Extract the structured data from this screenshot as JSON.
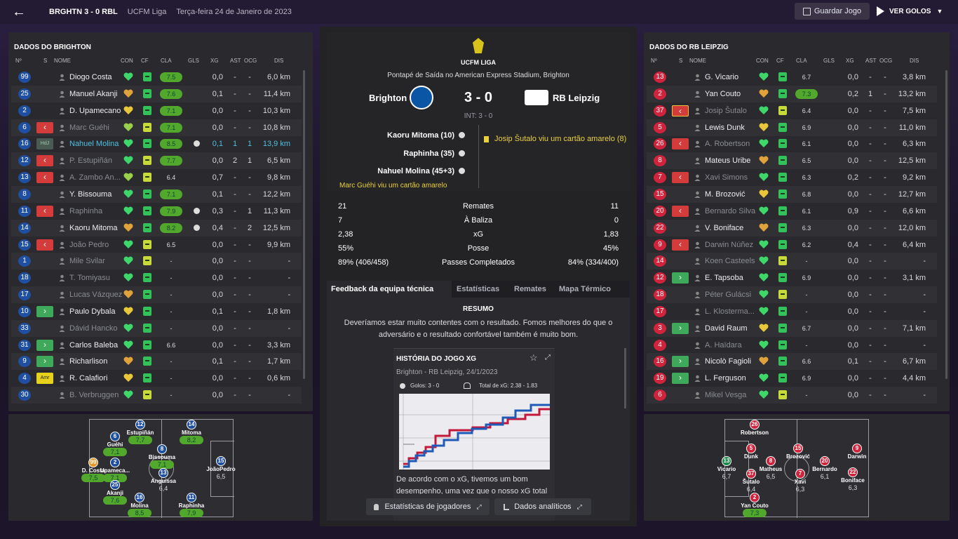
{
  "topbar": {
    "score": "BRGHTN   3 - 0   RBL",
    "competition": "UCFM Liga",
    "date": "Terça-feira 24 de Janeiro de 2023",
    "save": "Guardar Jogo",
    "goals": "VER GOLOS"
  },
  "headers": {
    "num": "Nº",
    "s": "S",
    "name": "NOME",
    "con": "CON",
    "cf": "CF",
    "cla": "CLA",
    "gls": "GLS",
    "xg": "XG",
    "ast": "AST",
    "ocg": "OCG",
    "dis": "DIS"
  },
  "brighton": {
    "title": "DADOS DO BRIGHTON",
    "players": [
      {
        "n": "99",
        "s": "",
        "name": "Diogo Costa",
        "cf": "g",
        "cla": "7.5",
        "g": true,
        "gls": "",
        "xg": "0,0",
        "ast": "-",
        "ocg": "-",
        "dis": "6,0 km"
      },
      {
        "n": "25",
        "s": "",
        "name": "Manuel Akanji",
        "cf": "g",
        "cla": "7.6",
        "g": true,
        "gls": "",
        "xg": "0,1",
        "ast": "-",
        "ocg": "-",
        "dis": "11,4 km"
      },
      {
        "n": "2",
        "s": "",
        "name": "D. Upamecano",
        "cf": "g",
        "cla": "7.1",
        "g": true,
        "gls": "",
        "xg": "0,0",
        "ast": "-",
        "ocg": "-",
        "dis": "10,3 km"
      },
      {
        "n": "6",
        "s": "out",
        "name": "Marc Guéhi",
        "dim": true,
        "cf": "m",
        "cla": "7.1",
        "g": true,
        "gls": "",
        "xg": "0,0",
        "ast": "-",
        "ocg": "-",
        "dis": "10,8 km"
      },
      {
        "n": "16",
        "s": "hdr",
        "name": "Nahuel Molina",
        "hl": true,
        "cf": "g",
        "cla": "8.5",
        "g": true,
        "gls": "ball",
        "xg": "0,1",
        "ast": "1",
        "ocg": "1",
        "dis": "13,9 km"
      },
      {
        "n": "12",
        "s": "out",
        "name": "P. Estupiñán",
        "dim": true,
        "cf": "m",
        "cla": "7.7",
        "g": true,
        "gls": "",
        "xg": "0,0",
        "ast": "2",
        "ocg": "1",
        "dis": "6,5 km"
      },
      {
        "n": "13",
        "s": "out",
        "name": "A. Zambo An...",
        "dim": true,
        "cf": "m",
        "cla": "6.4",
        "g": false,
        "gls": "",
        "xg": "0,7",
        "ast": "-",
        "ocg": "-",
        "dis": "9,8 km"
      },
      {
        "n": "8",
        "s": "",
        "name": "Y. Bissouma",
        "cf": "g",
        "cla": "7.1",
        "g": true,
        "gls": "",
        "xg": "0,1",
        "ast": "-",
        "ocg": "-",
        "dis": "12,2 km"
      },
      {
        "n": "11",
        "s": "out",
        "name": "Raphinha",
        "dim": true,
        "cf": "g",
        "cla": "7.9",
        "g": true,
        "gls": "ball",
        "xg": "0,3",
        "ast": "-",
        "ocg": "1",
        "dis": "11,3 km"
      },
      {
        "n": "14",
        "s": "",
        "name": "Kaoru Mitoma",
        "cf": "g",
        "cla": "8.2",
        "g": true,
        "gls": "ball",
        "xg": "0,4",
        "ast": "-",
        "ocg": "2",
        "dis": "12,5 km"
      },
      {
        "n": "15",
        "s": "out",
        "name": "João Pedro",
        "dim": true,
        "cf": "m",
        "cla": "6.5",
        "g": false,
        "gls": "",
        "xg": "0,0",
        "ast": "-",
        "ocg": "-",
        "dis": "9,9 km"
      },
      {
        "n": "1",
        "s": "",
        "name": "Mile Svilar",
        "dim": true,
        "cf": "m",
        "cla": "-",
        "g": false,
        "gls": "",
        "xg": "0,0",
        "ast": "-",
        "ocg": "-",
        "dis": "-"
      },
      {
        "n": "18",
        "s": "",
        "name": "T. Tomiyasu",
        "dim": true,
        "cf": "g",
        "cla": "-",
        "g": false,
        "gls": "",
        "xg": "0,0",
        "ast": "-",
        "ocg": "-",
        "dis": "-"
      },
      {
        "n": "17",
        "s": "",
        "name": "Lucas Vázquez",
        "dim": true,
        "cf": "g",
        "cla": "-",
        "g": false,
        "gls": "",
        "xg": "0,0",
        "ast": "-",
        "ocg": "-",
        "dis": "-"
      },
      {
        "n": "10",
        "s": "in",
        "name": "Paulo Dybala",
        "cf": "g",
        "cla": "-",
        "g": false,
        "gls": "",
        "xg": "0,1",
        "ast": "-",
        "ocg": "-",
        "dis": "1,8 km"
      },
      {
        "n": "33",
        "s": "",
        "name": "Dávid Hancko",
        "dim": true,
        "cf": "g",
        "cla": "-",
        "g": false,
        "gls": "",
        "xg": "0,0",
        "ast": "-",
        "ocg": "-",
        "dis": "-"
      },
      {
        "n": "31",
        "s": "in",
        "name": "Carlos Baleba",
        "cf": "g",
        "cla": "6.6",
        "g": false,
        "gls": "",
        "xg": "0,0",
        "ast": "-",
        "ocg": "-",
        "dis": "3,3 km"
      },
      {
        "n": "9",
        "s": "in",
        "name": "Richarlison",
        "cf": "g",
        "cla": "-",
        "g": false,
        "gls": "",
        "xg": "0,1",
        "ast": "-",
        "ocg": "-",
        "dis": "1,7 km"
      },
      {
        "n": "4",
        "s": "amr",
        "name": "R. Calafiori",
        "cf": "g",
        "cla": "-",
        "g": false,
        "gls": "",
        "xg": "0,0",
        "ast": "-",
        "ocg": "-",
        "dis": "0,6 km"
      },
      {
        "n": "30",
        "s": "",
        "name": "B. Verbruggen",
        "dim": true,
        "cf": "m",
        "cla": "-",
        "g": false,
        "gls": "",
        "xg": "0,0",
        "ast": "-",
        "ocg": "-",
        "dis": "-"
      }
    ]
  },
  "leipzig": {
    "title": "DADOS DO RB LEIPZIG",
    "players": [
      {
        "n": "13",
        "s": "",
        "name": "G. Vicario",
        "cf": "g",
        "cla": "6.7",
        "g": false,
        "gls": "",
        "xg": "0,0",
        "ast": "-",
        "ocg": "-",
        "dis": "3,8 km"
      },
      {
        "n": "2",
        "s": "",
        "name": "Yan Couto",
        "cf": "g",
        "cla": "7.3",
        "g": true,
        "gls": "",
        "xg": "0,2",
        "ast": "1",
        "ocg": "-",
        "dis": "13,2 km"
      },
      {
        "n": "37",
        "s": "outy",
        "name": "Josip Šutalo",
        "dim": true,
        "cf": "m",
        "cla": "6.4",
        "g": false,
        "gls": "",
        "xg": "0,0",
        "ast": "-",
        "ocg": "-",
        "dis": "7,5 km"
      },
      {
        "n": "5",
        "s": "",
        "name": "Lewis Dunk",
        "cf": "g",
        "cla": "6.9",
        "g": false,
        "gls": "",
        "xg": "0,0",
        "ast": "-",
        "ocg": "-",
        "dis": "11,0 km"
      },
      {
        "n": "26",
        "s": "out",
        "name": "A. Robertson",
        "dim": true,
        "cf": "g",
        "cla": "6.1",
        "g": false,
        "gls": "",
        "xg": "0,0",
        "ast": "-",
        "ocg": "-",
        "dis": "6,3 km"
      },
      {
        "n": "8",
        "s": "",
        "name": "Mateus Uribe",
        "cf": "g",
        "cla": "6.5",
        "g": false,
        "gls": "",
        "xg": "0,0",
        "ast": "-",
        "ocg": "-",
        "dis": "12,5 km"
      },
      {
        "n": "7",
        "s": "out",
        "name": "Xavi Simons",
        "dim": true,
        "cf": "g",
        "cla": "6.3",
        "g": false,
        "gls": "",
        "xg": "0,2",
        "ast": "-",
        "ocg": "-",
        "dis": "9,2 km"
      },
      {
        "n": "15",
        "s": "",
        "name": "M. Brozović",
        "cf": "g",
        "cla": "6.8",
        "g": false,
        "gls": "",
        "xg": "0,0",
        "ast": "-",
        "ocg": "-",
        "dis": "12,7 km"
      },
      {
        "n": "20",
        "s": "out",
        "name": "Bernardo Silva",
        "dim": true,
        "cf": "g",
        "cla": "6.1",
        "g": false,
        "gls": "",
        "xg": "0,9",
        "ast": "-",
        "ocg": "-",
        "dis": "6,6 km"
      },
      {
        "n": "22",
        "s": "",
        "name": "V. Boniface",
        "cf": "g",
        "cla": "6.3",
        "g": false,
        "gls": "",
        "xg": "0,0",
        "ast": "-",
        "ocg": "-",
        "dis": "12,0 km"
      },
      {
        "n": "9",
        "s": "out",
        "name": "Darwin Núñez",
        "dim": true,
        "cf": "g",
        "cla": "6.2",
        "g": false,
        "gls": "",
        "xg": "0,4",
        "ast": "-",
        "ocg": "-",
        "dis": "6,4 km"
      },
      {
        "n": "14",
        "s": "",
        "name": "Koen Casteels",
        "dim": true,
        "cf": "m",
        "cla": "-",
        "g": false,
        "gls": "",
        "xg": "0,0",
        "ast": "-",
        "ocg": "-",
        "dis": "-"
      },
      {
        "n": "12",
        "s": "in",
        "name": "E. Tapsoba",
        "cf": "g",
        "cla": "6.9",
        "g": false,
        "gls": "",
        "xg": "0,0",
        "ast": "-",
        "ocg": "-",
        "dis": "3,1 km"
      },
      {
        "n": "18",
        "s": "",
        "name": "Péter Gulácsi",
        "dim": true,
        "cf": "m",
        "cla": "-",
        "g": false,
        "gls": "",
        "xg": "0,0",
        "ast": "-",
        "ocg": "-",
        "dis": "-"
      },
      {
        "n": "17",
        "s": "",
        "name": "L. Klosterma...",
        "dim": true,
        "cf": "g",
        "cla": "-",
        "g": false,
        "gls": "",
        "xg": "0,0",
        "ast": "-",
        "ocg": "-",
        "dis": "-"
      },
      {
        "n": "3",
        "s": "in",
        "name": "David Raum",
        "cf": "g",
        "cla": "6.7",
        "g": false,
        "gls": "",
        "xg": "0,0",
        "ast": "-",
        "ocg": "-",
        "dis": "7,1 km"
      },
      {
        "n": "4",
        "s": "",
        "name": "A. Haïdara",
        "dim": true,
        "cf": "g",
        "cla": "-",
        "g": false,
        "gls": "",
        "xg": "0,0",
        "ast": "-",
        "ocg": "-",
        "dis": "-"
      },
      {
        "n": "16",
        "s": "in",
        "name": "Nicolò Fagioli",
        "cf": "g",
        "cla": "6.6",
        "g": false,
        "gls": "",
        "xg": "0,1",
        "ast": "-",
        "ocg": "-",
        "dis": "6,7 km"
      },
      {
        "n": "19",
        "s": "in",
        "name": "L. Ferguson",
        "cf": "g",
        "cla": "6.9",
        "g": false,
        "gls": "",
        "xg": "0,0",
        "ast": "-",
        "ocg": "-",
        "dis": "4,4 km"
      },
      {
        "n": "6",
        "s": "",
        "name": "Mikel Vesga",
        "dim": true,
        "cf": "m",
        "cla": "-",
        "g": false,
        "gls": "",
        "xg": "0,0",
        "ast": "-",
        "ocg": "-",
        "dis": "-"
      }
    ]
  },
  "match": {
    "league": "UCFM LIGA",
    "venue": "Pontapé de Saída no American Express Stadium, Brighton",
    "home": "Brighton",
    "away": "RB Leipzig",
    "score": "3 - 0",
    "ht": "INT: 3 - 0",
    "home_events": [
      "Kaoru Mitoma (10)",
      "Raphinha (35)",
      "Nahuel Molina (45+3)"
    ],
    "home_event_cut": "Marc Guéhi viu um cartão amarelo",
    "away_event": "Josip Šutalo viu um cartão amarelo (8)"
  },
  "stats": [
    {
      "l": "21",
      "label": "Remates",
      "r": "11"
    },
    {
      "l": "7",
      "label": "À Baliza",
      "r": "0"
    },
    {
      "l": "2,38",
      "label": "xG",
      "r": "1,83"
    },
    {
      "l": "55%",
      "label": "Posse",
      "r": "45%"
    },
    {
      "l": "89% (406/458)",
      "label": "Passes Completados",
      "r": "84% (334/400)"
    }
  ],
  "tabs": [
    "Feedback da equipa técnica",
    "Estatísticas",
    "Remates",
    "Mapa Térmico"
  ],
  "feedback": {
    "heading": "RESUMO",
    "text1": "Deveríamos estar muito contentes com o resultado. Fomos melhores do que o",
    "text2": "adversário e o resultado confortável também é muito bom.",
    "card_title": "HISTÓRIA DO JOGO XG",
    "card_sub": "Brighton - RB Leipzig, 24/1/2023",
    "goals": "Golos: 3 - 0",
    "xg_total": "Total de xG: 2.38 - 1.83",
    "note1": "De acordo com o xG, tivemos um bom",
    "note2": "desempenho, uma vez que o nosso xG total foi"
  },
  "buttons": {
    "player_stats": "Estatísticas de jogadores",
    "analytics": "Dados analíticos"
  },
  "home_pitch": [
    {
      "n": "6",
      "name": "Guéhi",
      "r": "7,1",
      "g": true
    },
    {
      "n": "12",
      "name": "Estupiñán",
      "r": "7,7",
      "g": true
    },
    {
      "n": "14",
      "name": "Mitoma",
      "r": "8,2",
      "g": true
    },
    {
      "n": "8",
      "name": "Bissouma",
      "r": "7,1",
      "g": true
    },
    {
      "n": "2",
      "name": "Upameca...",
      "r": "7,1",
      "g": true
    },
    {
      "n": "99",
      "name": "D. Costa",
      "r": "7,5",
      "g": true,
      "org": true
    },
    {
      "n": "13",
      "name": "Anguissa",
      "r": "6,4"
    },
    {
      "n": "15",
      "name": "JoãoPedro",
      "r": "6,5"
    },
    {
      "n": "25",
      "name": "Akanji",
      "r": "7,6",
      "g": true
    },
    {
      "n": "16",
      "name": "Molina",
      "r": "8,5",
      "g": true
    },
    {
      "n": "11",
      "name": "Raphinha",
      "r": "7,9",
      "g": true
    }
  ],
  "away_pitch": [
    {
      "n": "26",
      "name": "Robertson",
      "r": ""
    },
    {
      "n": "5",
      "name": "Dunk",
      "r": ""
    },
    {
      "n": "15",
      "name": "Brozović",
      "r": ""
    },
    {
      "n": "9",
      "name": "Darwin",
      "r": ""
    },
    {
      "n": "13",
      "name": "Vicario",
      "r": "6,7",
      "grn": true
    },
    {
      "n": "8",
      "name": "Matheus",
      "r": "6,5"
    },
    {
      "n": "20",
      "name": "Bernardo",
      "r": "6,1"
    },
    {
      "n": "22",
      "name": "Boniface",
      "r": "6,3"
    },
    {
      "n": "37",
      "name": "Šutalo",
      "r": "6,4"
    },
    {
      "n": "7",
      "name": "Xavi",
      "r": "6,3"
    },
    {
      "n": "2",
      "name": "Yan Couto",
      "r": "7,3",
      "g": true
    }
  ],
  "colors": {
    "accent_green": "#52a82c",
    "home_blue": "#1e4fa0",
    "away_red": "#d0233c"
  }
}
